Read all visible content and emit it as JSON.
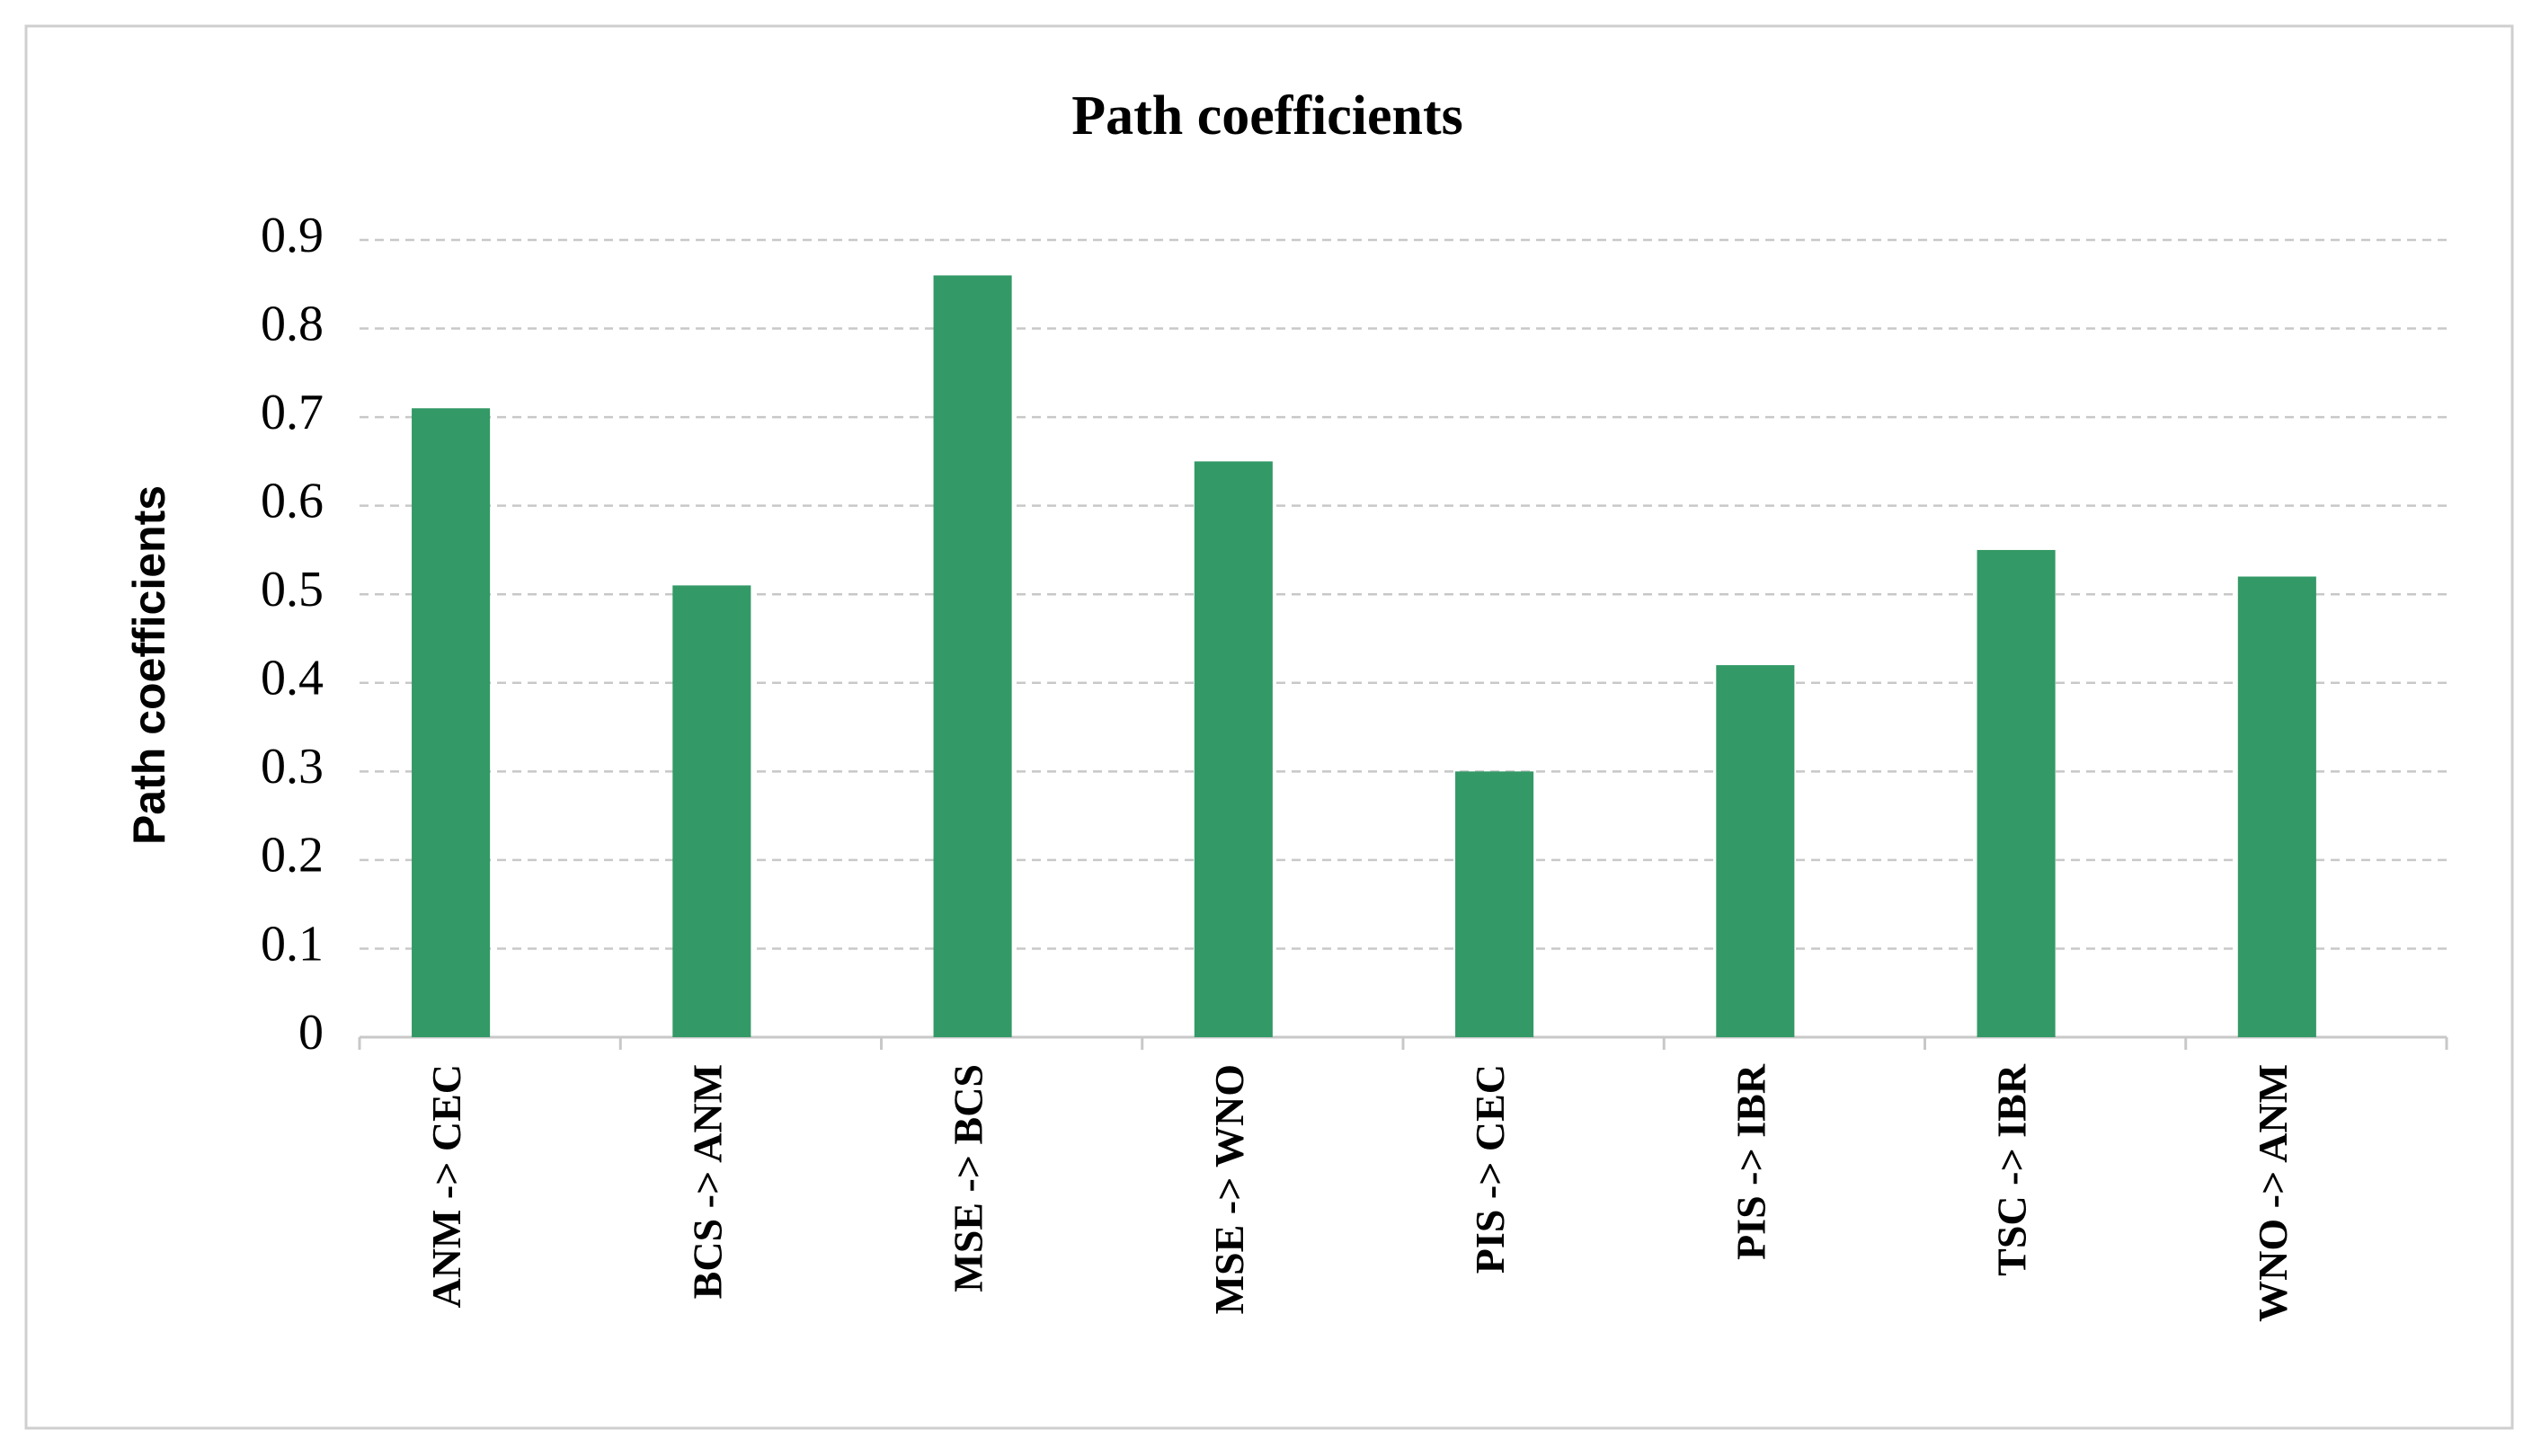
{
  "chart_data": {
    "type": "bar",
    "title": "Path coefficients",
    "y_label": "Path coefficients",
    "categories": [
      "ANM -> CEC",
      "BCS -> ANM",
      "MSE -> BCS",
      "MSE -> WNO",
      "PIS -> CEC",
      "PIS -> IBR",
      "TSC -> IBR",
      "WNO -> ANM"
    ],
    "values": [
      0.71,
      0.51,
      0.86,
      0.65,
      0.3,
      0.42,
      0.55,
      0.52
    ],
    "color": "#339966",
    "ylim": [
      0,
      0.9
    ],
    "yticks": [
      0,
      0.1,
      0.2,
      0.3,
      0.4,
      0.5,
      0.6,
      0.7,
      0.8,
      0.9
    ],
    "grid": true
  }
}
